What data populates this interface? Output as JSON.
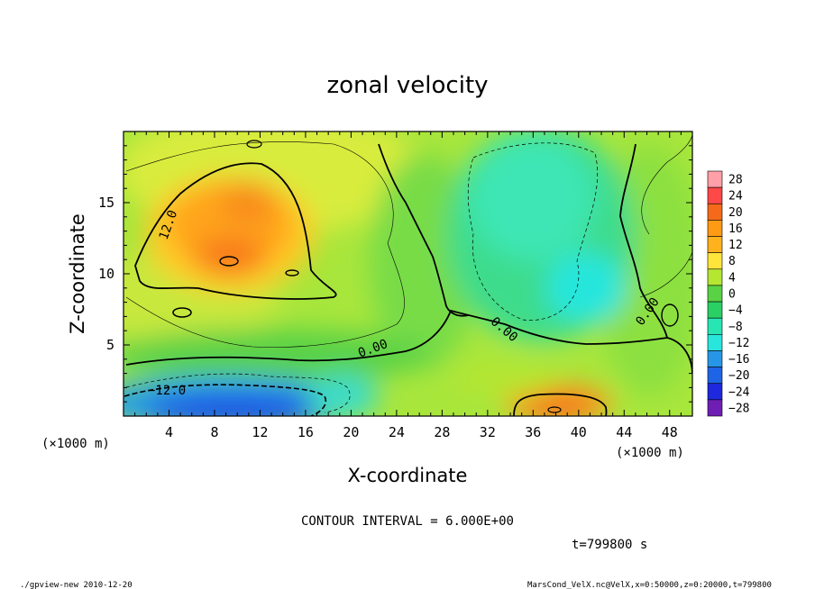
{
  "chart_data": {
    "type": "heatmap",
    "title": "zonal velocity",
    "xlabel": "X-coordinate",
    "ylabel": "Z-coordinate",
    "x_unit": "(×1000 m)",
    "y_unit": "(×1000 m)",
    "xlim": [
      0,
      50
    ],
    "ylim": [
      0,
      20
    ],
    "x_ticks": [
      "4",
      "8",
      "12",
      "16",
      "20",
      "24",
      "28",
      "32",
      "36",
      "40",
      "44",
      "48"
    ],
    "y_ticks": [
      "5",
      "10",
      "15"
    ],
    "colorbar_labels": [
      "28",
      "24",
      "20",
      "16",
      "12",
      "8",
      "4",
      "0",
      "−4",
      "−8",
      "−12",
      "−16",
      "−20",
      "−24",
      "−28"
    ],
    "colorbar_colors": [
      "#ff9fa8",
      "#ff4848",
      "#f46a1a",
      "#ff9a14",
      "#ffb21e",
      "#ffe43c",
      "#b4e632",
      "#5ad246",
      "#2ad064",
      "#28e6b4",
      "#28e6dc",
      "#2896e6",
      "#1e64e6",
      "#1e28dc",
      "#6e1eb4"
    ],
    "contour_labels": [
      "12.0",
      "−12.0",
      "0.00",
      "0.00",
      "0.00"
    ],
    "contour_interval": "CONTOUR INTERVAL = 6.000E+00",
    "time_label": "t=799800 s",
    "features": [
      {
        "name": "positive core upper-left",
        "x": 10,
        "z": 12,
        "value": 18
      },
      {
        "name": "positive core lower-right",
        "x": 39,
        "z": 1,
        "value": 16
      },
      {
        "name": "negative core lower-left",
        "x": 10,
        "z": 1,
        "value": -20
      },
      {
        "name": "negative region right",
        "x": 38,
        "z": 12,
        "value": -8
      }
    ]
  },
  "footer": {
    "left": "./gpview-new  2010-12-20",
    "right": "MarsCond_VelX.nc@VelX,x=0:50000,z=0:20000,t=799800"
  }
}
